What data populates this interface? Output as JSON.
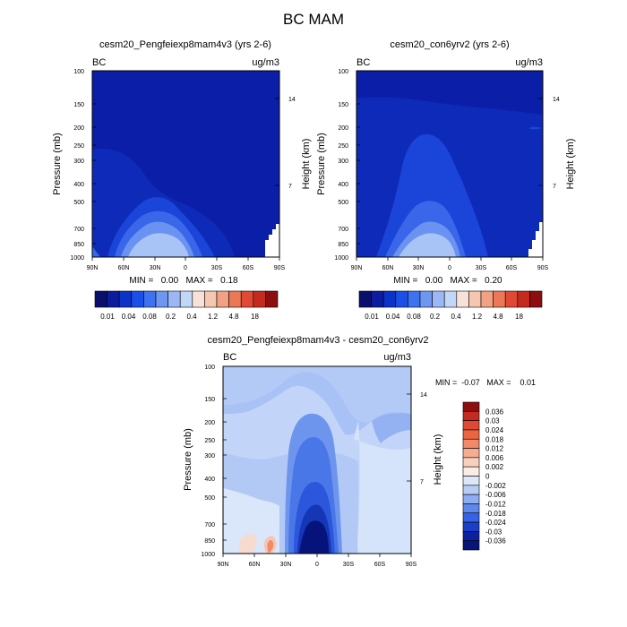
{
  "figure": {
    "title": "BC MAM"
  },
  "panels": [
    {
      "title": "cesm20_Pengfeiexp8mam4v3 (yrs 2-6)",
      "left_label": "BC",
      "right_label": "ug/m3",
      "stats": "MIN =   0.00   MAX =   0.18"
    },
    {
      "title": "cesm20_con6yrv2 (yrs 2-6)",
      "left_label": "BC",
      "right_label": "ug/m3",
      "stats": "MIN =   0.00   MAX =   0.20"
    },
    {
      "title": "cesm20_Pengfeiexp8mam4v3 - cesm20_con6yrv2",
      "left_label": "BC",
      "right_label": "ug/m3",
      "stats": "MIN =  -0.07   MAX =    0.01"
    }
  ],
  "axes": {
    "ylabel": "Pressure (mb)",
    "ylabel_right": "Height (km)",
    "pressure_ticks": [
      "100",
      "150",
      "200",
      "250",
      "300",
      "400",
      "500",
      "700",
      "850",
      "1000"
    ],
    "height_ticks": [
      "14",
      "7"
    ],
    "lat_ticks": [
      "90N",
      "60N",
      "30N",
      "0",
      "30S",
      "60S",
      "90S"
    ]
  },
  "colorbar_abs": {
    "colors": [
      "#0a0f6e",
      "#0b1d9e",
      "#0c33c8",
      "#1a4fe8",
      "#3d72f0",
      "#6e97f2",
      "#9ab8f5",
      "#c2d6f7",
      "#f8e2d8",
      "#f6c7b0",
      "#f2a282",
      "#ec7858",
      "#e04a34",
      "#c52a1e",
      "#8c0e10"
    ],
    "labels": [
      "0.01",
      "0.04",
      "0.08",
      "0.2",
      "0.4",
      "1.2",
      "4.8",
      "18"
    ]
  },
  "colorbar_diff": {
    "colors": [
      "#8c0e10",
      "#c52a1e",
      "#e04a34",
      "#ec6440",
      "#f08a68",
      "#f4ad90",
      "#f8d0be",
      "#fbece4",
      "#dce8f8",
      "#b7cdf5",
      "#8eadf0",
      "#5f88ec",
      "#3563e4",
      "#1a40c8",
      "#0b22a0",
      "#071478"
    ],
    "labels": [
      "0.036",
      "0.03",
      "0.024",
      "0.018",
      "0.012",
      "0.006",
      "0.002",
      "0",
      "-0.002",
      "-0.006",
      "-0.012",
      "-0.018",
      "-0.024",
      "-0.03",
      "-0.036"
    ]
  },
  "chart_data": [
    {
      "type": "heatmap",
      "title": "cesm20_Pengfeiexp8mam4v3 (yrs 2-6)",
      "xlabel": "",
      "ylabel": "Pressure (mb)",
      "x_ticks": [
        "90N",
        "60N",
        "30N",
        "0",
        "30S",
        "60S",
        "90S"
      ],
      "y_ticks": [
        100,
        150,
        200,
        250,
        300,
        400,
        500,
        700,
        850,
        1000
      ],
      "units": "ug/m3",
      "min": 0.0,
      "max": 0.18,
      "contour_levels": [
        0.01,
        0.04,
        0.08,
        0.2,
        0.4,
        1.2,
        4.8,
        18
      ]
    },
    {
      "type": "heatmap",
      "title": "cesm20_con6yrv2 (yrs 2-6)",
      "xlabel": "",
      "ylabel": "Pressure (mb)",
      "x_ticks": [
        "90N",
        "60N",
        "30N",
        "0",
        "30S",
        "60S",
        "90S"
      ],
      "y_ticks": [
        100,
        150,
        200,
        250,
        300,
        400,
        500,
        700,
        850,
        1000
      ],
      "units": "ug/m3",
      "min": 0.0,
      "max": 0.2,
      "contour_levels": [
        0.01,
        0.04,
        0.08,
        0.2,
        0.4,
        1.2,
        4.8,
        18
      ]
    },
    {
      "type": "heatmap",
      "title": "cesm20_Pengfeiexp8mam4v3 - cesm20_con6yrv2",
      "xlabel": "",
      "ylabel": "Pressure (mb)",
      "x_ticks": [
        "90N",
        "60N",
        "30N",
        "0",
        "30S",
        "60S",
        "90S"
      ],
      "y_ticks": [
        100,
        150,
        200,
        250,
        300,
        400,
        500,
        700,
        850,
        1000
      ],
      "units": "ug/m3",
      "min": -0.07,
      "max": 0.01,
      "contour_levels": [
        -0.036,
        -0.03,
        -0.024,
        -0.018,
        -0.012,
        -0.006,
        -0.002,
        0,
        0.002,
        0.006,
        0.012,
        0.018,
        0.024,
        0.03,
        0.036
      ]
    }
  ]
}
